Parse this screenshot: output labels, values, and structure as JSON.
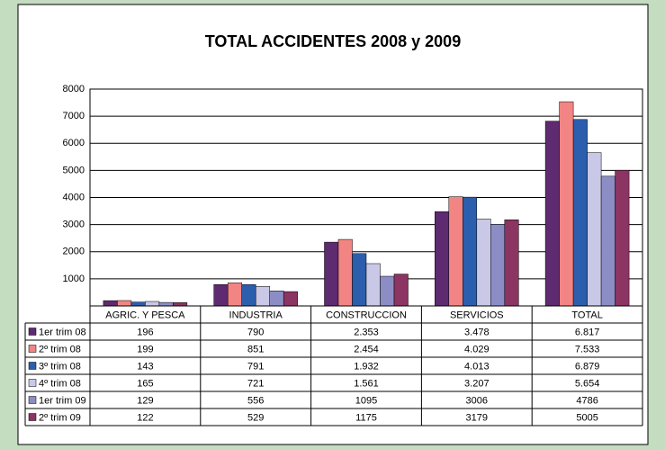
{
  "chart_data": {
    "type": "bar",
    "title": "TOTAL ACCIDENTES 2008 y 2009",
    "categories": [
      "AGRIC. Y PESCA",
      "INDUSTRIA",
      "CONSTRUCCION",
      "SERVICIOS",
      "TOTAL"
    ],
    "series": [
      {
        "name": "1er trim 08",
        "color": "#5e2a70",
        "values": [
          196,
          790,
          2353,
          3478,
          6817
        ],
        "value_labels": [
          "196",
          "790",
          "2.353",
          "3.478",
          "6.817"
        ]
      },
      {
        "name": "2º trim 08",
        "color": "#f28583",
        "values": [
          199,
          851,
          2454,
          4029,
          7533
        ],
        "value_labels": [
          "199",
          "851",
          "2.454",
          "4.029",
          "7.533"
        ]
      },
      {
        "name": "3º trim 08",
        "color": "#2c5eae",
        "values": [
          143,
          791,
          1932,
          4013,
          6879
        ],
        "value_labels": [
          "143",
          "791",
          "1.932",
          "4.013",
          "6.879"
        ]
      },
      {
        "name": "4º trim 08",
        "color": "#c9c8e6",
        "values": [
          165,
          721,
          1561,
          3207,
          5654
        ],
        "value_labels": [
          "165",
          "721",
          "1.561",
          "3.207",
          "5.654"
        ]
      },
      {
        "name": "1er trim 09",
        "color": "#8d8dc6",
        "values": [
          129,
          556,
          1095,
          3006,
          4786
        ]
      },
      {
        "name": "2º trim 09",
        "color": "#8c3462",
        "values": [
          122,
          529,
          1175,
          3179,
          5005
        ]
      }
    ],
    "ylim": [
      0,
      8000
    ],
    "yticks": [
      1000,
      2000,
      3000,
      4000,
      5000,
      6000,
      7000,
      8000
    ],
    "grid": true
  }
}
